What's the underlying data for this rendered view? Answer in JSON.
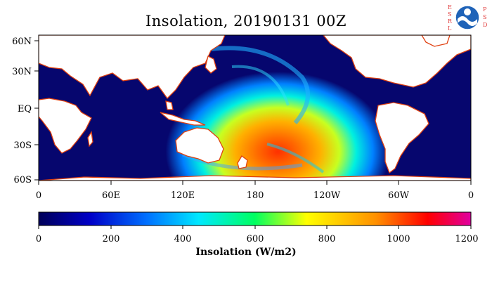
{
  "title": "Insolation, 20190131 00Z",
  "logo": {
    "left_letters": "ESRL",
    "right_letters": "PSD",
    "badge": "NOAA",
    "colors": {
      "badge_blue": "#1f63b8",
      "letters": "#e03b3b"
    }
  },
  "map": {
    "lat_ticks": [
      "60N",
      "30N",
      "EQ",
      "30S",
      "60S"
    ],
    "lon_ticks": [
      "0",
      "60E",
      "120E",
      "180",
      "120W",
      "60W",
      "0"
    ],
    "colors": {
      "ocean_night": "#06066e",
      "land": "#ffffff",
      "coast": "#e04010"
    }
  },
  "colorbar": {
    "ticks": [
      "0",
      "200",
      "400",
      "600",
      "800",
      "1000",
      "1200"
    ],
    "label": "Insolation (W/m2)",
    "range": [
      0,
      1200
    ],
    "colormap": [
      "#000058",
      "#0000c8",
      "#0070ff",
      "#00e8ff",
      "#00ff60",
      "#ffff00",
      "#ff9000",
      "#ff0000",
      "#e000a0"
    ]
  }
}
